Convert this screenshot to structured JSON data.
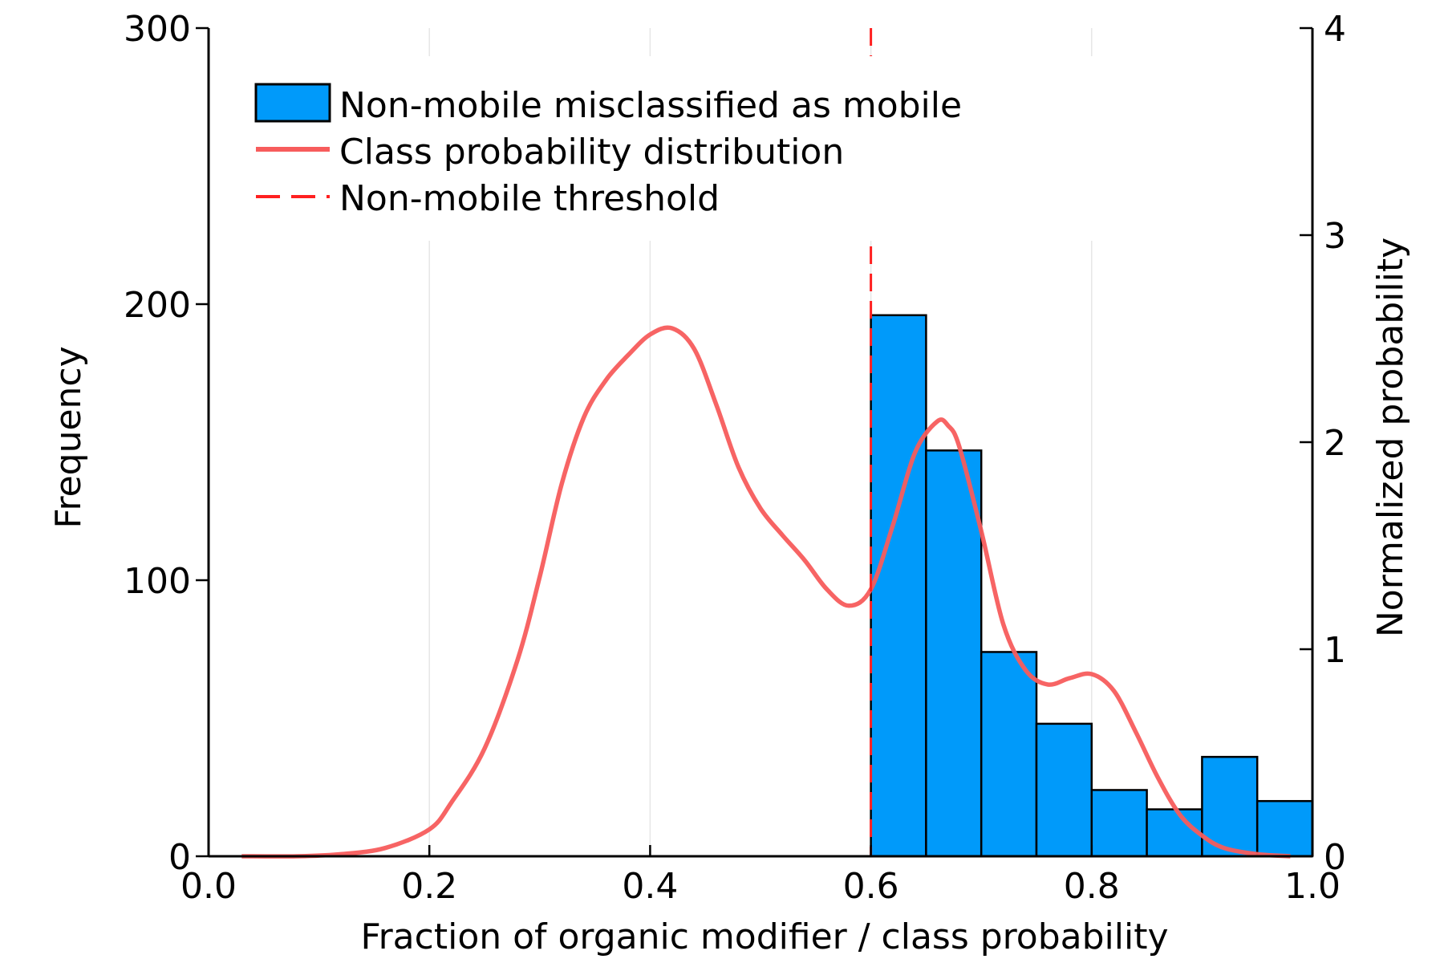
{
  "chart_data": {
    "type": "bar",
    "xlabel": "Fraction of organic modifier / class probability",
    "ylabel": "Frequency",
    "y2label": "Normalized probability",
    "xlim": [
      0.0,
      1.0
    ],
    "ylim": [
      0,
      300
    ],
    "y2lim": [
      0,
      4
    ],
    "x_ticks": [
      "0.0",
      "0.2",
      "0.4",
      "0.6",
      "0.8",
      "1.0"
    ],
    "y_ticks": [
      "0",
      "100",
      "200",
      "300"
    ],
    "y2_ticks": [
      "0",
      "1",
      "2",
      "3",
      "4"
    ],
    "grid": true,
    "legend_position": "top-left",
    "histogram": {
      "name": "Non-mobile misclassified as mobile",
      "color": "#009AFA",
      "bin_edges": [
        0.6,
        0.65,
        0.7,
        0.75,
        0.8,
        0.85,
        0.9,
        0.95,
        1.0
      ],
      "counts": [
        196,
        147,
        74,
        48,
        24,
        17,
        36,
        20
      ]
    },
    "curve": {
      "name": "Class probability distribution",
      "color": "#F75C5C",
      "axis": "right",
      "x": [
        0.03,
        0.08,
        0.12,
        0.16,
        0.2,
        0.22,
        0.25,
        0.28,
        0.3,
        0.32,
        0.34,
        0.36,
        0.38,
        0.4,
        0.42,
        0.44,
        0.46,
        0.48,
        0.5,
        0.52,
        0.54,
        0.56,
        0.58,
        0.6,
        0.62,
        0.64,
        0.66,
        0.67,
        0.68,
        0.7,
        0.72,
        0.74,
        0.76,
        0.78,
        0.8,
        0.82,
        0.84,
        0.86,
        0.88,
        0.9,
        0.92,
        0.95,
        0.98
      ],
      "y": [
        0.0,
        0.0,
        0.01,
        0.04,
        0.13,
        0.26,
        0.52,
        0.95,
        1.35,
        1.8,
        2.12,
        2.3,
        2.42,
        2.52,
        2.55,
        2.45,
        2.18,
        1.88,
        1.68,
        1.55,
        1.43,
        1.29,
        1.21,
        1.29,
        1.6,
        1.95,
        2.1,
        2.08,
        1.98,
        1.57,
        1.12,
        0.9,
        0.83,
        0.86,
        0.88,
        0.8,
        0.6,
        0.38,
        0.2,
        0.1,
        0.04,
        0.01,
        0.0
      ]
    },
    "threshold": {
      "name": "Non-mobile threshold",
      "color": "#FF2020",
      "x": 0.6
    }
  }
}
